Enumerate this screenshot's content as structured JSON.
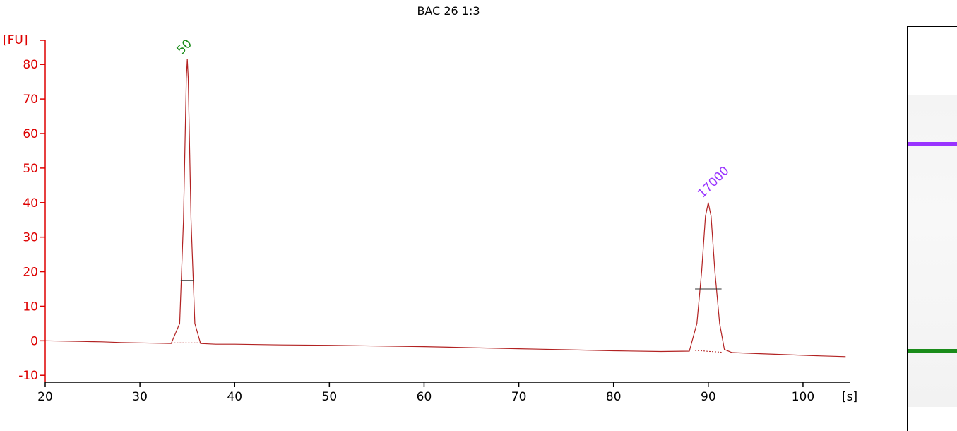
{
  "chart_data": {
    "type": "line",
    "title": "BAC 26 1:3",
    "ylabel": "[FU]",
    "xlabel": "[s]",
    "xlim": [
      20,
      105
    ],
    "ylim": [
      -12,
      87
    ],
    "x_ticks": [
      20,
      30,
      40,
      50,
      60,
      70,
      80,
      90,
      100
    ],
    "y_ticks": [
      -10,
      0,
      10,
      20,
      30,
      40,
      50,
      60,
      70,
      80
    ],
    "grid": false,
    "colors": {
      "trace": "#b22222",
      "axis": "#dd0000",
      "marker_low": "#1a8c1a",
      "marker_high": "#9933ff"
    },
    "series": [
      {
        "x": [
          20,
          22,
          24,
          26,
          28,
          30,
          32,
          33.3,
          34.2,
          34.6,
          34.9,
          35.0,
          35.1,
          35.4,
          35.8,
          36.4,
          38,
          40,
          45,
          50,
          55,
          60,
          65,
          70,
          75,
          80,
          85,
          88,
          88.8,
          89.3,
          89.7,
          90.0,
          90.3,
          90.7,
          91.2,
          91.7,
          92.5,
          95,
          98,
          100,
          102,
          104.5
        ],
        "y": [
          0,
          -0.1,
          -0.2,
          -0.3,
          -0.5,
          -0.6,
          -0.7,
          -0.8,
          5,
          35,
          76,
          81.5,
          76,
          35,
          5,
          -0.8,
          -1.0,
          -1.0,
          -1.2,
          -1.3,
          -1.5,
          -1.7,
          -2.0,
          -2.3,
          -2.6,
          -2.9,
          -3.1,
          -3.0,
          5,
          20,
          36,
          40,
          36,
          20,
          5,
          -2.5,
          -3.4,
          -3.7,
          -4.0,
          -4.2,
          -4.4,
          -4.6
        ]
      }
    ],
    "peaks": [
      {
        "x": 35.0,
        "y": 81.5,
        "label": "50",
        "color": "#1a8c1a",
        "bar_y": 17.5,
        "bar_x": [
          34.3,
          35.7
        ]
      },
      {
        "x": 90.0,
        "y": 40,
        "label": "17000",
        "color": "#9933ff",
        "bar_y": 15,
        "bar_x": [
          88.6,
          91.4
        ]
      }
    ],
    "baseline_segments": [
      {
        "x": [
          33.3,
          36.4
        ],
        "y": [
          -0.6,
          -0.6
        ]
      },
      {
        "x": [
          88.6,
          91.4
        ],
        "y": [
          -2.8,
          -3.3
        ]
      }
    ]
  },
  "gel": {
    "bands": [
      {
        "label": "17000",
        "color": "#9933ff",
        "position": 0.289
      },
      {
        "label": "50",
        "color": "#1a8c1a",
        "position": 0.801
      }
    ]
  }
}
